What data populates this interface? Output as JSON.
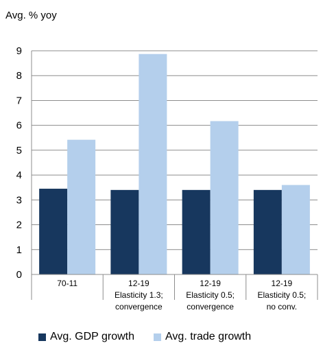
{
  "chart_data": {
    "type": "bar",
    "ylabel": "Avg. % yoy",
    "ylim": [
      0,
      9
    ],
    "yticks": [
      "0",
      "1",
      "2",
      "3",
      "4",
      "5",
      "6",
      "7",
      "8",
      "9"
    ],
    "grid": true,
    "legend_position": "bottom",
    "categories": [
      [
        "70-11"
      ],
      [
        "12-19",
        "Elasticity 1.3;",
        "convergence"
      ],
      [
        "12-19",
        "Elasticity 0.5;",
        "convergence"
      ],
      [
        "12-19",
        "Elasticity 0.5;",
        "no conv."
      ]
    ],
    "series": [
      {
        "name": "Avg. GDP growth",
        "color": "#17375e",
        "values": [
          3.45,
          3.4,
          3.4,
          3.4
        ]
      },
      {
        "name": "Avg. trade growth",
        "color": "#b4cfec",
        "values": [
          5.42,
          8.87,
          6.17,
          3.6
        ]
      }
    ]
  }
}
